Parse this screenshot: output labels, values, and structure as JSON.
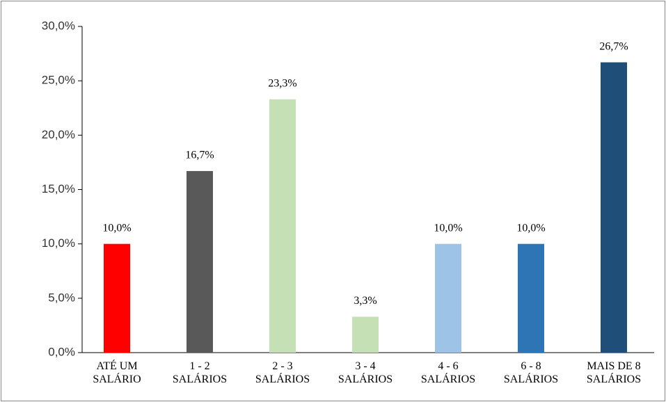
{
  "chart_data": {
    "type": "bar",
    "categories": [
      "ATÉ UM SALÁRIO",
      "1 - 2 SALÁRIOS",
      "2 - 3 SALÁRIOS",
      "3 - 4 SALÁRIOS",
      "4 - 6 SALÁRIOS",
      "6 - 8 SALÁRIOS",
      "MAIS DE 8 SALÁRIOS"
    ],
    "values": [
      10.0,
      16.7,
      23.3,
      3.3,
      10.0,
      10.0,
      26.7
    ],
    "value_labels": [
      "10,0%",
      "16,7%",
      "23,3%",
      "3,3%",
      "10,0%",
      "10,0%",
      "26,7%"
    ],
    "colors": [
      "#ff0000",
      "#595959",
      "#c5e0b4",
      "#c5e0b4",
      "#9dc3e6",
      "#2e75b6",
      "#1f4e79"
    ],
    "ylim": [
      0,
      30
    ],
    "yticks": [
      {
        "value": 0,
        "label": "0,0%"
      },
      {
        "value": 5,
        "label": "5,0%"
      },
      {
        "value": 10,
        "label": "10,0%"
      },
      {
        "value": 15,
        "label": "15,0%"
      },
      {
        "value": 20,
        "label": "20,0%"
      },
      {
        "value": 25,
        "label": "25,0%"
      },
      {
        "value": 30,
        "label": "30,0%"
      }
    ],
    "grid": false
  }
}
